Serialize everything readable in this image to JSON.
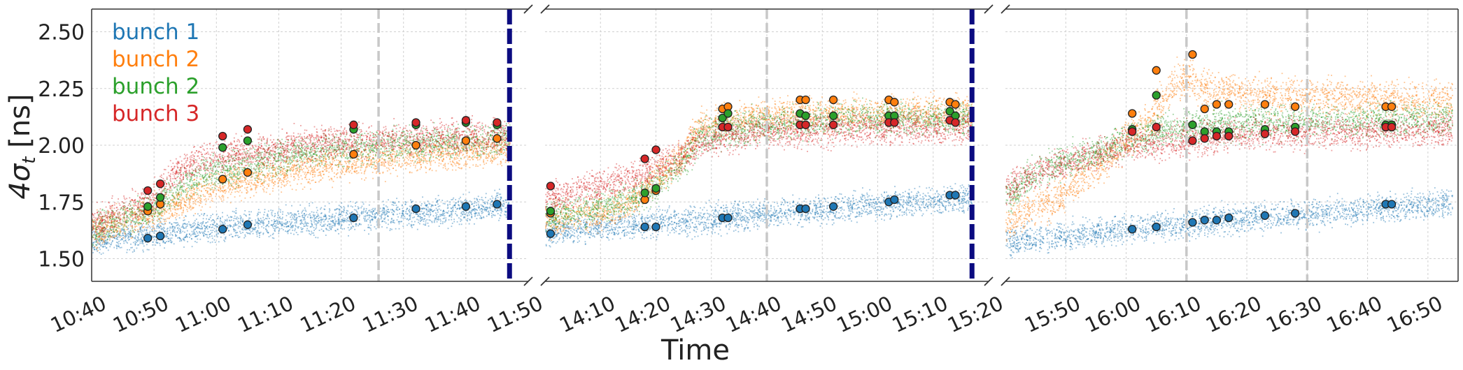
{
  "chart_data": {
    "type": "scatter",
    "ylabel_main": "4σ",
    "ylabel_sub": "t",
    "ylabel_unit": " [ns]",
    "xlabel": "Time",
    "ylim": [
      1.4,
      2.6
    ],
    "yticks": [
      1.5,
      1.75,
      2.0,
      2.25,
      2.5
    ],
    "ytick_labels": [
      "1.50",
      "1.75",
      "2.00",
      "2.25",
      "2.50"
    ],
    "grid": true,
    "legend_position": "top-left",
    "legend": [
      {
        "label": "bunch 1",
        "color": "#1f77b4"
      },
      {
        "label": "bunch 2",
        "color": "#ff7f0e"
      },
      {
        "label": "bunch 2",
        "color": "#2ca02c"
      },
      {
        "label": "bunch 3",
        "color": "#d62728"
      }
    ],
    "series_colors": {
      "blue": "#1f77b4",
      "orange": "#ff7f0e",
      "green": "#2ca02c",
      "red": "#d62728"
    },
    "panels": [
      {
        "xlim": [
          "10:40",
          "11:50"
        ],
        "xtick_labels": [
          "10:40",
          "10:50",
          "11:00",
          "11:10",
          "11:20",
          "11:30",
          "11:40",
          "11:50"
        ],
        "gray_dashed_lines": [
          "11:26"
        ],
        "navy_dashed_lines": [
          "11:47"
        ],
        "bands": {
          "blue": {
            "x": [
              "10:40",
              "10:50",
              "11:00",
              "11:10",
              "11:20",
              "11:30",
              "11:40",
              "11:47"
            ],
            "y": [
              1.58,
              1.61,
              1.64,
              1.66,
              1.68,
              1.7,
              1.72,
              1.74
            ],
            "spread": 0.03
          },
          "orange": {
            "x": [
              "10:40",
              "10:45",
              "10:50",
              "10:55",
              "11:00",
              "11:10",
              "11:20",
              "11:30",
              "11:40",
              "11:47"
            ],
            "y": [
              1.62,
              1.66,
              1.7,
              1.76,
              1.82,
              1.88,
              1.92,
              1.95,
              1.97,
              1.99
            ],
            "spread": 0.035
          },
          "green": {
            "x": [
              "10:40",
              "10:45",
              "10:50",
              "10:55",
              "11:00",
              "11:10",
              "11:20",
              "11:30",
              "11:40",
              "11:47"
            ],
            "y": [
              1.63,
              1.68,
              1.72,
              1.84,
              1.89,
              1.95,
              1.99,
              2.01,
              2.02,
              2.03
            ],
            "spread": 0.035
          },
          "red": {
            "x": [
              "10:40",
              "10:45",
              "10:50",
              "10:52",
              "10:55",
              "11:00",
              "11:10",
              "11:20",
              "11:30",
              "11:40",
              "11:47"
            ],
            "y": [
              1.65,
              1.71,
              1.76,
              1.85,
              1.91,
              1.95,
              1.99,
              2.02,
              2.03,
              2.04,
              2.04
            ],
            "spread": 0.035
          }
        },
        "points": {
          "blue": [
            [
              "10:49",
              1.59
            ],
            [
              "10:51",
              1.6
            ],
            [
              "11:01",
              1.63
            ],
            [
              "11:05",
              1.65
            ],
            [
              "11:22",
              1.68
            ],
            [
              "11:32",
              1.72
            ],
            [
              "11:40",
              1.73
            ],
            [
              "11:45",
              1.74
            ]
          ],
          "orange": [
            [
              "10:49",
              1.71
            ],
            [
              "10:51",
              1.74
            ],
            [
              "11:01",
              1.85
            ],
            [
              "11:05",
              1.88
            ],
            [
              "11:22",
              1.96
            ],
            [
              "11:32",
              2.0
            ],
            [
              "11:40",
              2.02
            ],
            [
              "11:45",
              2.03
            ]
          ],
          "green": [
            [
              "10:49",
              1.73
            ],
            [
              "10:51",
              1.77
            ],
            [
              "11:01",
              1.99
            ],
            [
              "11:05",
              2.02
            ],
            [
              "11:22",
              2.07
            ],
            [
              "11:32",
              2.09
            ],
            [
              "11:40",
              2.1
            ],
            [
              "11:45",
              2.09
            ]
          ],
          "red": [
            [
              "10:49",
              1.8
            ],
            [
              "10:51",
              1.83
            ],
            [
              "11:01",
              2.04
            ],
            [
              "11:05",
              2.07
            ],
            [
              "11:22",
              2.09
            ],
            [
              "11:32",
              2.1
            ],
            [
              "11:40",
              2.11
            ],
            [
              "11:45",
              2.1
            ]
          ]
        }
      },
      {
        "xlim": [
          "14:00",
          "15:20"
        ],
        "xtick_labels": [
          "14:10",
          "14:20",
          "14:30",
          "14:40",
          "14:50",
          "15:00",
          "15:10",
          "15:20"
        ],
        "gray_dashed_lines": [
          "14:40"
        ],
        "navy_dashed_lines": [
          "15:17"
        ],
        "bands": {
          "blue": {
            "x": [
              "14:00",
              "14:10",
              "14:20",
              "14:30",
              "14:40",
              "14:50",
              "15:00",
              "15:10",
              "15:17"
            ],
            "y": [
              1.62,
              1.64,
              1.66,
              1.68,
              1.7,
              1.72,
              1.74,
              1.76,
              1.77
            ],
            "spread": 0.03
          },
          "orange": {
            "x": [
              "14:00",
              "14:10",
              "14:15",
              "14:20",
              "14:25",
              "14:28",
              "14:32",
              "14:40",
              "14:50",
              "15:00",
              "15:10",
              "15:17"
            ],
            "y": [
              1.67,
              1.7,
              1.74,
              1.85,
              1.96,
              2.09,
              2.11,
              2.13,
              2.14,
              2.15,
              2.15,
              2.15
            ],
            "spread": 0.035
          },
          "green": {
            "x": [
              "14:00",
              "14:10",
              "14:15",
              "14:20",
              "14:25",
              "14:28",
              "14:32",
              "14:40",
              "14:50",
              "15:00",
              "15:10",
              "15:17"
            ],
            "y": [
              1.69,
              1.73,
              1.76,
              1.82,
              1.94,
              2.05,
              2.07,
              2.09,
              2.11,
              2.12,
              2.12,
              2.12
            ],
            "spread": 0.035
          },
          "red": {
            "x": [
              "14:00",
              "14:10",
              "14:15",
              "14:20",
              "14:25",
              "14:28",
              "14:32",
              "14:40",
              "14:50",
              "15:00",
              "15:10",
              "15:17"
            ],
            "y": [
              1.76,
              1.82,
              1.86,
              1.9,
              1.96,
              2.02,
              2.04,
              2.06,
              2.07,
              2.08,
              2.08,
              2.08
            ],
            "spread": 0.035
          }
        },
        "points": {
          "blue": [
            [
              "14:01",
              1.61
            ],
            [
              "14:18",
              1.64
            ],
            [
              "14:20",
              1.64
            ],
            [
              "14:32",
              1.68
            ],
            [
              "14:33",
              1.68
            ],
            [
              "14:46",
              1.72
            ],
            [
              "14:47",
              1.72
            ],
            [
              "14:52",
              1.73
            ],
            [
              "15:02",
              1.75
            ],
            [
              "15:03",
              1.76
            ],
            [
              "15:13",
              1.78
            ],
            [
              "15:14",
              1.78
            ]
          ],
          "orange": [
            [
              "14:01",
              1.7
            ],
            [
              "14:18",
              1.76
            ],
            [
              "14:20",
              1.8
            ],
            [
              "14:32",
              2.16
            ],
            [
              "14:33",
              2.17
            ],
            [
              "14:46",
              2.2
            ],
            [
              "14:47",
              2.2
            ],
            [
              "14:52",
              2.2
            ],
            [
              "15:02",
              2.2
            ],
            [
              "15:03",
              2.19
            ],
            [
              "15:13",
              2.19
            ],
            [
              "15:14",
              2.18
            ]
          ],
          "green": [
            [
              "14:01",
              1.71
            ],
            [
              "14:18",
              1.79
            ],
            [
              "14:20",
              1.81
            ],
            [
              "14:32",
              2.12
            ],
            [
              "14:33",
              2.14
            ],
            [
              "14:46",
              2.14
            ],
            [
              "14:47",
              2.13
            ],
            [
              "14:52",
              2.13
            ],
            [
              "15:02",
              2.13
            ],
            [
              "15:03",
              2.13
            ],
            [
              "15:13",
              2.15
            ],
            [
              "15:14",
              2.13
            ]
          ],
          "red": [
            [
              "14:01",
              1.82
            ],
            [
              "14:18",
              1.94
            ],
            [
              "14:20",
              1.98
            ],
            [
              "14:32",
              2.08
            ],
            [
              "14:33",
              2.08
            ],
            [
              "14:46",
              2.09
            ],
            [
              "14:47",
              2.09
            ],
            [
              "14:52",
              2.09
            ],
            [
              "15:02",
              2.1
            ],
            [
              "15:03",
              2.1
            ],
            [
              "15:13",
              2.11
            ],
            [
              "15:14",
              2.1
            ]
          ]
        }
      },
      {
        "xlim": [
          "15:40",
          "16:55"
        ],
        "xtick_labels": [
          "15:50",
          "16:00",
          "16:10",
          "16:20",
          "16:30",
          "16:40",
          "16:50"
        ],
        "gray_dashed_lines": [
          "16:10",
          "16:30"
        ],
        "navy_dashed_lines": [],
        "bands": {
          "blue": {
            "x": [
              "15:40",
              "15:50",
              "16:00",
              "16:10",
              "16:20",
              "16:30",
              "16:40",
              "16:50",
              "16:54"
            ],
            "y": [
              1.58,
              1.6,
              1.63,
              1.66,
              1.68,
              1.7,
              1.72,
              1.74,
              1.75
            ],
            "spread": 0.03
          },
          "orange": {
            "x": [
              "15:40",
              "15:44",
              "15:48",
              "15:51",
              "15:55",
              "16:00",
              "16:04",
              "16:08",
              "16:10",
              "16:13",
              "16:20",
              "16:30",
              "16:40",
              "16:50",
              "16:54"
            ],
            "y": [
              1.66,
              1.72,
              1.75,
              1.82,
              1.9,
              2.02,
              2.12,
              2.28,
              2.3,
              2.25,
              2.23,
              2.22,
              2.21,
              2.2,
              2.2
            ],
            "spread": 0.04
          },
          "green": {
            "x": [
              "15:40",
              "15:45",
              "15:50",
              "15:55",
              "16:00",
              "16:05",
              "16:10",
              "16:20",
              "16:30",
              "16:40",
              "16:50",
              "16:54"
            ],
            "y": [
              1.77,
              1.88,
              1.93,
              1.97,
              2.02,
              2.06,
              2.09,
              2.1,
              2.11,
              2.11,
              2.12,
              2.12
            ],
            "spread": 0.035
          },
          "red": {
            "x": [
              "15:40",
              "15:45",
              "15:50",
              "15:55",
              "16:00",
              "16:05",
              "16:10",
              "16:20",
              "16:30",
              "16:40",
              "16:50",
              "16:54"
            ],
            "y": [
              1.81,
              1.88,
              1.92,
              1.96,
              2.0,
              2.02,
              2.03,
              2.05,
              2.06,
              2.06,
              2.07,
              2.07
            ],
            "spread": 0.035
          }
        },
        "points": {
          "blue": [
            [
              "16:01",
              1.63
            ],
            [
              "16:05",
              1.64
            ],
            [
              "16:11",
              1.66
            ],
            [
              "16:13",
              1.67
            ],
            [
              "16:15",
              1.67
            ],
            [
              "16:17",
              1.68
            ],
            [
              "16:23",
              1.69
            ],
            [
              "16:28",
              1.7
            ],
            [
              "16:43",
              1.74
            ],
            [
              "16:44",
              1.74
            ]
          ],
          "orange": [
            [
              "16:01",
              2.14
            ],
            [
              "16:05",
              2.33
            ],
            [
              "16:11",
              2.4
            ],
            [
              "16:13",
              2.16
            ],
            [
              "16:15",
              2.18
            ],
            [
              "16:17",
              2.18
            ],
            [
              "16:23",
              2.18
            ],
            [
              "16:28",
              2.17
            ],
            [
              "16:43",
              2.17
            ],
            [
              "16:44",
              2.17
            ]
          ],
          "green": [
            [
              "16:01",
              2.07
            ],
            [
              "16:05",
              2.22
            ],
            [
              "16:11",
              2.09
            ],
            [
              "16:13",
              2.06
            ],
            [
              "16:15",
              2.06
            ],
            [
              "16:17",
              2.06
            ],
            [
              "16:23",
              2.07
            ],
            [
              "16:28",
              2.08
            ],
            [
              "16:43",
              2.09
            ],
            [
              "16:44",
              2.09
            ]
          ],
          "red": [
            [
              "16:01",
              2.06
            ],
            [
              "16:05",
              2.08
            ],
            [
              "16:11",
              2.02
            ],
            [
              "16:13",
              2.03
            ],
            [
              "16:15",
              2.04
            ],
            [
              "16:17",
              2.04
            ],
            [
              "16:23",
              2.05
            ],
            [
              "16:28",
              2.06
            ],
            [
              "16:43",
              2.08
            ],
            [
              "16:44",
              2.08
            ]
          ]
        }
      }
    ]
  }
}
